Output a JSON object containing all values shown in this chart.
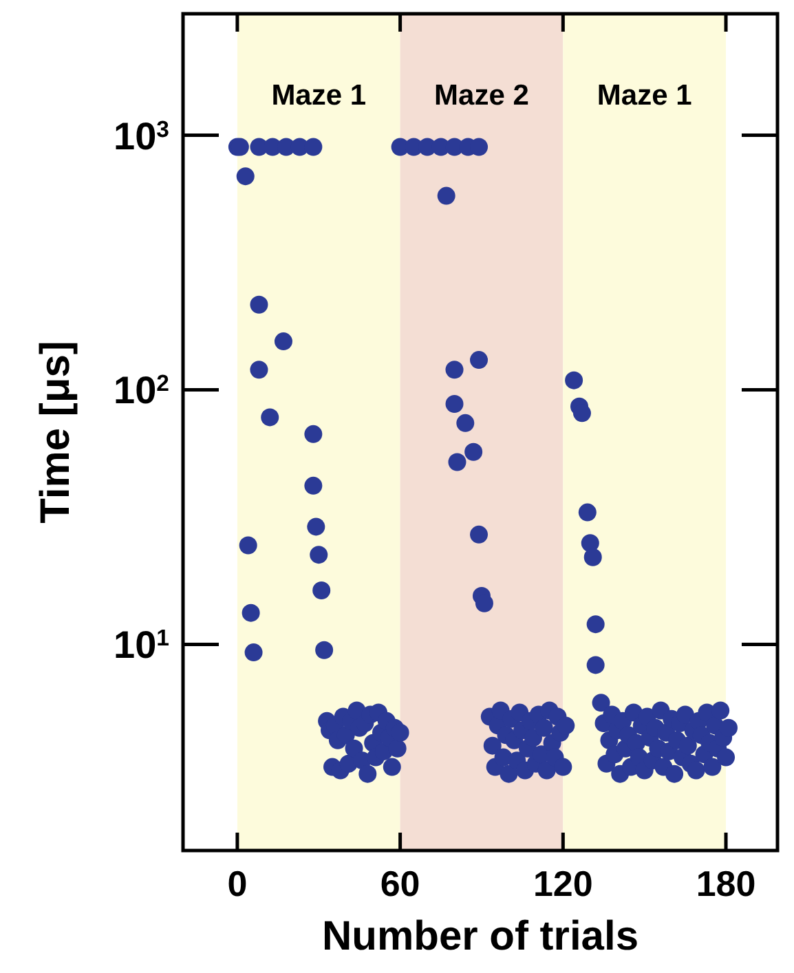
{
  "chart_data": {
    "type": "scatter",
    "xlabel": "Number of trials",
    "ylabel": "Time [μs]",
    "log": "y",
    "xlim": [
      -20,
      199
    ],
    "xticks": [
      0,
      60,
      120,
      180
    ],
    "ylim": [
      1.55,
      3000
    ],
    "yticks": [
      {
        "value": 10,
        "label": "10$^{1}$"
      },
      {
        "value": 100,
        "label": "10$^{2}$"
      },
      {
        "value": 1000,
        "label": "10$^{3}$"
      }
    ],
    "grid": false,
    "marker": "circle",
    "bands": [
      {
        "axis": "x",
        "from": 0,
        "to": 60,
        "label": "Maze 1",
        "color": "#fdfbdc"
      },
      {
        "axis": "x",
        "from": 60,
        "to": 120,
        "label": "Maze 2",
        "color": "#f4ded4"
      },
      {
        "axis": "x",
        "from": 120,
        "to": 180,
        "label": "Maze 1",
        "color": "#fdfbdc"
      }
    ],
    "series": [
      {
        "color": "#2b3a96",
        "x": [
          0,
          1,
          8,
          13,
          18,
          23,
          28,
          3,
          8,
          17,
          8,
          12,
          28,
          4,
          5,
          6,
          28,
          29,
          30,
          31,
          32,
          33,
          34,
          35,
          36,
          37,
          38,
          39,
          40,
          41,
          42,
          43,
          44,
          45,
          46,
          47,
          48,
          49,
          50,
          51,
          52,
          53,
          54,
          55,
          56,
          57,
          58,
          59,
          60,
          60,
          65,
          70,
          75,
          80,
          85,
          89,
          77,
          80,
          89,
          80,
          84,
          87,
          81,
          89,
          90,
          91,
          93,
          94,
          95,
          96,
          97,
          98,
          99,
          100,
          101,
          102,
          103,
          104,
          105,
          106,
          107,
          108,
          109,
          110,
          111,
          112,
          113,
          114,
          115,
          116,
          117,
          118,
          119,
          120,
          121,
          124,
          126,
          127,
          129,
          130,
          131,
          132,
          132,
          134,
          135,
          136,
          137,
          138,
          139,
          140,
          141,
          142,
          143,
          144,
          145,
          146,
          147,
          148,
          149,
          150,
          151,
          152,
          153,
          154,
          155,
          156,
          157,
          158,
          159,
          160,
          161,
          162,
          163,
          164,
          165,
          166,
          167,
          168,
          169,
          170,
          171,
          172,
          173,
          174,
          175,
          176,
          177,
          178,
          179,
          180,
          181
        ],
        "values": [
          900,
          900,
          900,
          900,
          900,
          900,
          900,
          690,
          216,
          155,
          120,
          78,
          67,
          24.5,
          13.3,
          9.3,
          42,
          29,
          22.5,
          16.3,
          9.5,
          5.0,
          4.6,
          3.3,
          4.8,
          4.2,
          3.2,
          5.2,
          4.4,
          3.4,
          5.0,
          3.9,
          5.5,
          4.7,
          3.5,
          4.9,
          3.1,
          5.3,
          4.1,
          3.6,
          5.4,
          4.5,
          3.8,
          5.0,
          4.3,
          3.3,
          4.7,
          3.9,
          4.5,
          900,
          900,
          900,
          900,
          900,
          900,
          900,
          578,
          120,
          131,
          88,
          74,
          57,
          52,
          27,
          15.5,
          14.5,
          5.2,
          4.0,
          3.3,
          4.8,
          5.5,
          3.6,
          4.4,
          3.1,
          5.1,
          4.2,
          3.5,
          5.4,
          4.6,
          3.2,
          3.9,
          5.0,
          4.3,
          3.4,
          5.3,
          3.7,
          4.7,
          3.2,
          5.5,
          4.1,
          3.6,
          5.2,
          4.5,
          3.3,
          4.8,
          109,
          86,
          81,
          33,
          25,
          22,
          12,
          8.3,
          5.9,
          4.9,
          3.4,
          4.2,
          5.3,
          3.7,
          4.6,
          3.1,
          5.0,
          3.9,
          4.4,
          3.3,
          5.4,
          4.1,
          3.6,
          4.8,
          3.2,
          5.2,
          4.3,
          3.5,
          4.7,
          3.9,
          5.5,
          3.3,
          4.5,
          3.8,
          5.1,
          3.1,
          4.2,
          4.9,
          3.6,
          5.3,
          4.0,
          3.4,
          4.6,
          3.2,
          5.0,
          4.4,
          3.7,
          5.4,
          4.1,
          3.3,
          4.8,
          3.9,
          5.5,
          4.3,
          3.6,
          4.7
        ]
      }
    ]
  }
}
